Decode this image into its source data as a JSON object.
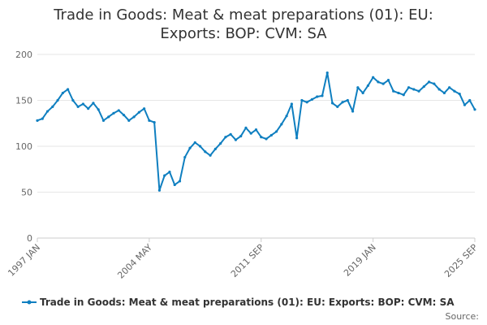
{
  "chart_data": {
    "type": "line",
    "title": "Trade in Goods: Meat & meat preparations (01): EU: Exports: BOP: CVM: SA",
    "title_lines": [
      "Trade in Goods: Meat & meat preparations (01): EU:",
      "Exports: BOP: CVM: SA"
    ],
    "xlabel": "",
    "ylabel": "",
    "x_range": [
      "1997 JAN",
      "2025 SEP"
    ],
    "x_tick_labels": [
      "1997 JAN",
      "2004 MAY",
      "2011 SEP",
      "2019 JAN",
      "2025 SEP"
    ],
    "ylim": [
      0,
      200
    ],
    "y_ticks": [
      0,
      50,
      100,
      150,
      200
    ],
    "grid": true,
    "legend_position": "bottom",
    "source_label": "Source:",
    "series": [
      {
        "name": "Trade in Goods: Meat & meat preparations (01): EU: Exports: BOP: CVM: SA",
        "color": "#0f7fc0",
        "x": [
          "1997 JAN",
          "1997 MAY",
          "1997 SEP",
          "1998 JAN",
          "1998 MAY",
          "1998 SEP",
          "1999 JAN",
          "1999 MAY",
          "1999 SEP",
          "2000 JAN",
          "2000 MAY",
          "2000 SEP",
          "2001 JAN",
          "2001 MAY",
          "2001 SEP",
          "2002 JAN",
          "2002 MAY",
          "2002 SEP",
          "2003 JAN",
          "2003 MAY",
          "2003 SEP",
          "2004 JAN",
          "2004 MAY",
          "2004 SEP",
          "2005 JAN",
          "2005 MAY",
          "2005 SEP",
          "2006 JAN",
          "2006 MAY",
          "2006 SEP",
          "2007 JAN",
          "2007 MAY",
          "2007 SEP",
          "2008 JAN",
          "2008 MAY",
          "2008 SEP",
          "2009 JAN",
          "2009 MAY",
          "2009 SEP",
          "2010 JAN",
          "2010 MAY",
          "2010 SEP",
          "2011 JAN",
          "2011 MAY",
          "2011 SEP",
          "2012 JAN",
          "2012 MAY",
          "2012 SEP",
          "2013 JAN",
          "2013 MAY",
          "2013 SEP",
          "2014 JAN",
          "2014 MAY",
          "2014 SEP",
          "2015 JAN",
          "2015 MAY",
          "2015 SEP",
          "2016 JAN",
          "2016 MAY",
          "2016 SEP",
          "2017 JAN",
          "2017 MAY",
          "2017 SEP",
          "2018 JAN",
          "2018 MAY",
          "2018 SEP",
          "2019 JAN",
          "2019 MAY",
          "2019 SEP",
          "2020 JAN",
          "2020 MAY",
          "2020 SEP",
          "2021 JAN",
          "2021 MAY",
          "2021 SEP",
          "2022 JAN",
          "2022 MAY",
          "2022 SEP",
          "2023 JAN",
          "2023 MAY",
          "2023 SEP",
          "2024 JAN",
          "2024 MAY",
          "2024 SEP",
          "2025 JAN",
          "2025 MAY",
          "2025 SEP"
        ],
        "values": [
          128,
          130,
          138,
          143,
          150,
          158,
          162,
          150,
          143,
          146,
          141,
          147,
          140,
          128,
          132,
          136,
          139,
          134,
          128,
          132,
          137,
          141,
          128,
          126,
          52,
          68,
          72,
          58,
          62,
          88,
          98,
          104,
          100,
          94,
          90,
          97,
          103,
          110,
          113,
          107,
          111,
          120,
          114,
          118,
          110,
          108,
          112,
          116,
          124,
          133,
          146,
          109,
          150,
          148,
          151,
          154,
          155,
          180,
          147,
          143,
          148,
          150,
          138,
          164,
          158,
          166,
          175,
          170,
          168,
          172,
          160,
          158,
          156,
          164,
          162,
          160,
          165,
          170,
          168,
          162,
          158,
          164,
          160,
          157,
          145,
          150,
          140
        ],
        "values_continued_note": "",
        "values_tail": []
      }
    ]
  }
}
